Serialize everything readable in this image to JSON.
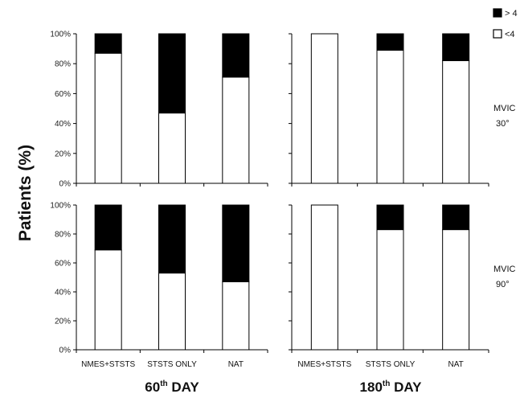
{
  "chart_data": {
    "type": "bar",
    "stacked": true,
    "ylabel": "Patients (%)",
    "yticks": [
      "0%",
      "20%",
      "40%",
      "60%",
      "80%",
      "100%"
    ],
    "ylim": [
      0,
      100
    ],
    "grid": false,
    "legend": {
      "placement": "top-right",
      "entries": [
        {
          "label": "> 4",
          "color": "#000000"
        },
        {
          "label": "<4",
          "color": "#ffffff"
        }
      ]
    },
    "categories": [
      "NMES+STSTS",
      "STSTS ONLY",
      "NAT"
    ],
    "columns": [
      {
        "label_pre": "60",
        "label_sup": "th",
        "label_post": " DAY"
      },
      {
        "label_pre": "180",
        "label_sup": "th",
        "label_post": " DAY"
      }
    ],
    "rows": [
      {
        "label_line1": "MVIC",
        "label_line2": "30°"
      },
      {
        "label_line1": "MVIC",
        "label_line2": "90°"
      }
    ],
    "panels": [
      {
        "row": 0,
        "col": 0,
        "series": [
          {
            "name": "<4",
            "values": [
              87,
              47,
              71
            ]
          },
          {
            "name": "> 4",
            "values": [
              13,
              53,
              29
            ]
          }
        ]
      },
      {
        "row": 0,
        "col": 1,
        "series": [
          {
            "name": "<4",
            "values": [
              100,
              89,
              82
            ]
          },
          {
            "name": "> 4",
            "values": [
              0,
              11,
              18
            ]
          }
        ]
      },
      {
        "row": 1,
        "col": 0,
        "series": [
          {
            "name": "<4",
            "values": [
              69,
              53,
              47
            ]
          },
          {
            "name": "> 4",
            "values": [
              31,
              47,
              53
            ]
          }
        ]
      },
      {
        "row": 1,
        "col": 1,
        "series": [
          {
            "name": "<4",
            "values": [
              100,
              83,
              83
            ]
          },
          {
            "name": "> 4",
            "values": [
              0,
              17,
              17
            ]
          }
        ]
      }
    ]
  }
}
